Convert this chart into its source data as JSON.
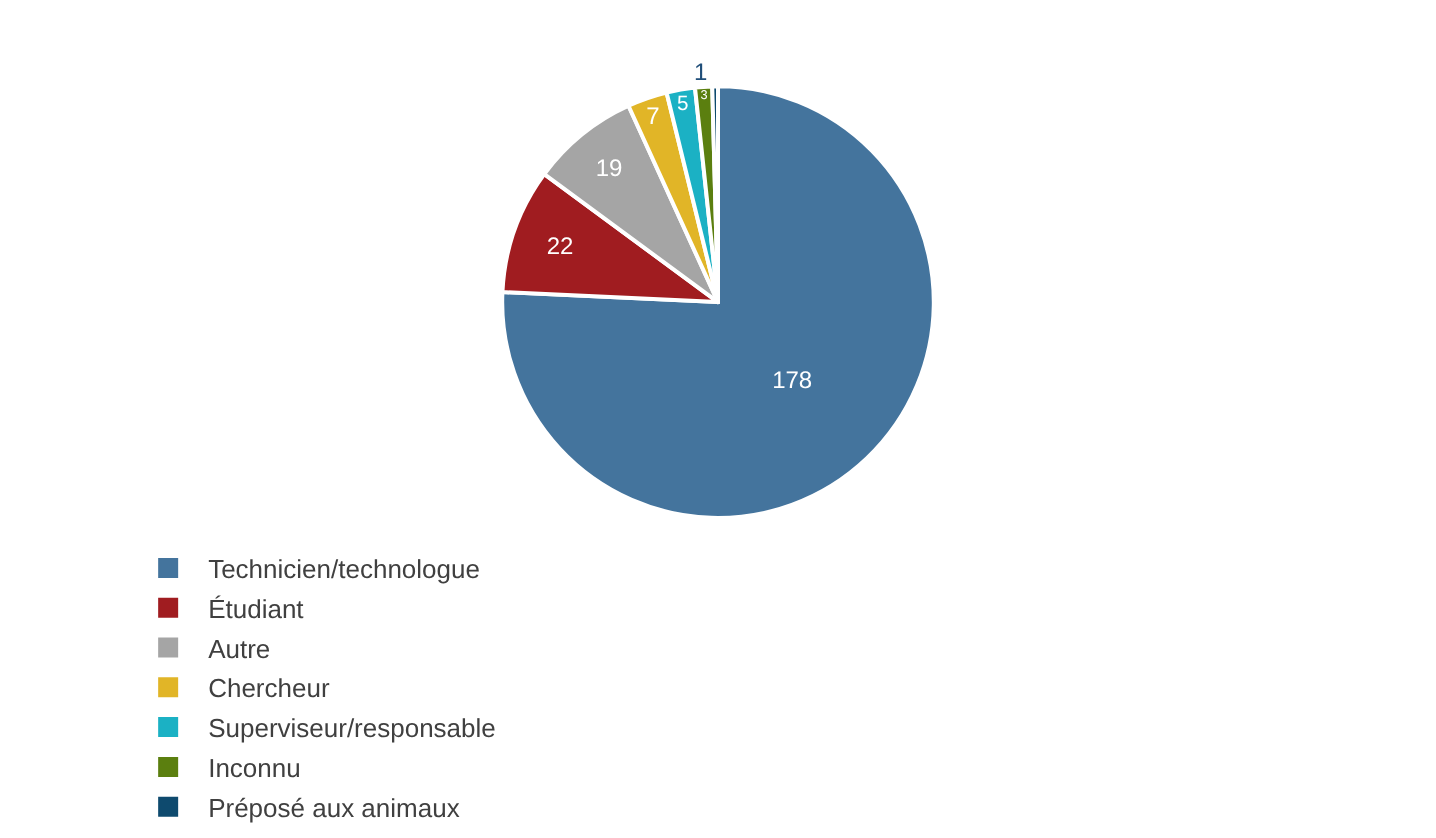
{
  "chart_data": {
    "type": "pie",
    "categories": [
      "Technicien/technologue",
      "Étudiant",
      "Autre",
      "Chercheur",
      "Superviseur/responsable",
      "Inconnu",
      "Préposé aux animaux"
    ],
    "values": [
      178,
      22,
      19,
      7,
      5,
      3,
      1
    ],
    "colors": [
      "#44749d",
      "#a01c20",
      "#a5a5a5",
      "#e1b527",
      "#1bb1c4",
      "#5b7f0f",
      "#0e4a6e"
    ],
    "data_labels": true,
    "legend": "bottom"
  }
}
